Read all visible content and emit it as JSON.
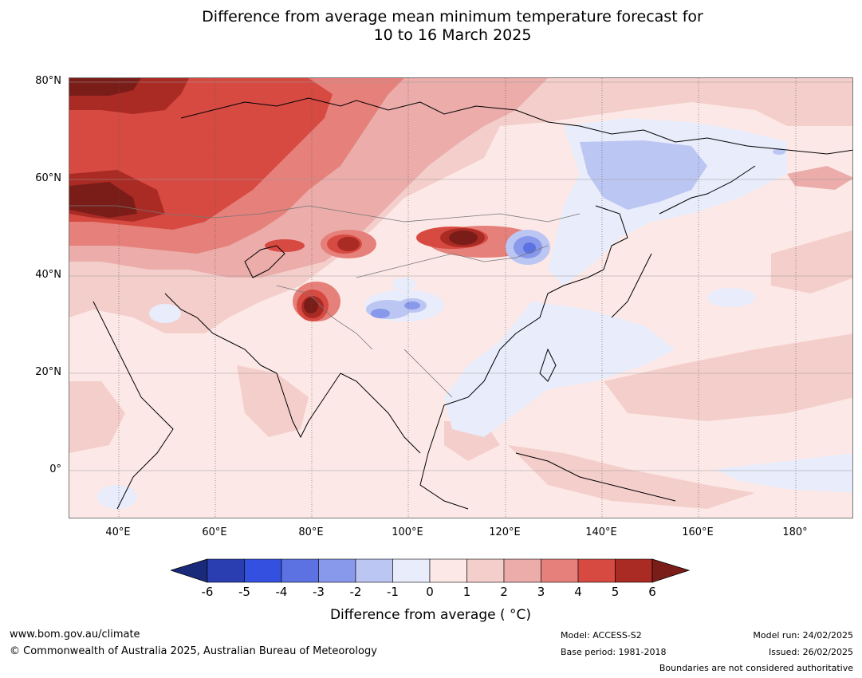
{
  "title_line1": "Difference from average mean minimum temperature forecast for",
  "title_line2": "10 to 16 March 2025",
  "lat_labels": [
    "80°N",
    "60°N",
    "40°N",
    "20°N",
    "0°"
  ],
  "lon_labels": [
    "40°E",
    "60°E",
    "80°E",
    "100°E",
    "120°E",
    "140°E",
    "160°E",
    "180°"
  ],
  "colorbar": {
    "ticks": [
      "-6",
      "-5",
      "-4",
      "-3",
      "-2",
      "-1",
      "0",
      "1",
      "2",
      "3",
      "4",
      "5",
      "6"
    ],
    "colors": [
      "#1a2a7a",
      "#2a3eb2",
      "#3350e0",
      "#5c72e2",
      "#8898ea",
      "#bcc6f3",
      "#e8ecfb",
      "#fce9e7",
      "#f4cecb",
      "#ebacaa",
      "#e6807a",
      "#d74a42",
      "#aa2a24",
      "#7a1d18"
    ],
    "label": "Difference from average ( °C)"
  },
  "footer": {
    "url": "www.bom.gov.au/climate",
    "copyright": "© Commonwealth of Australia 2025, Australian Bureau of Meteorology",
    "model": "Model: ACCESS-S2",
    "base_period": "Base period: 1981-2018",
    "model_run": "Model run: 24/02/2025",
    "issued": "Issued: 26/02/2025",
    "boundaries": "Boundaries are not considered authoritative"
  },
  "map_colors": {
    "plus_0_1": "#fce9e7",
    "plus_1_2": "#f4cecb",
    "plus_2_3": "#ebacaa",
    "plus_3_4": "#e6807a",
    "plus_4_5": "#d74a42",
    "plus_5_6": "#aa2a24",
    "plus_6": "#7a1d18",
    "minus_0_1": "#e8ecfb",
    "minus_1_2": "#bcc6f3",
    "minus_2_3": "#8898ea",
    "minus_3_4": "#5c72e2"
  }
}
